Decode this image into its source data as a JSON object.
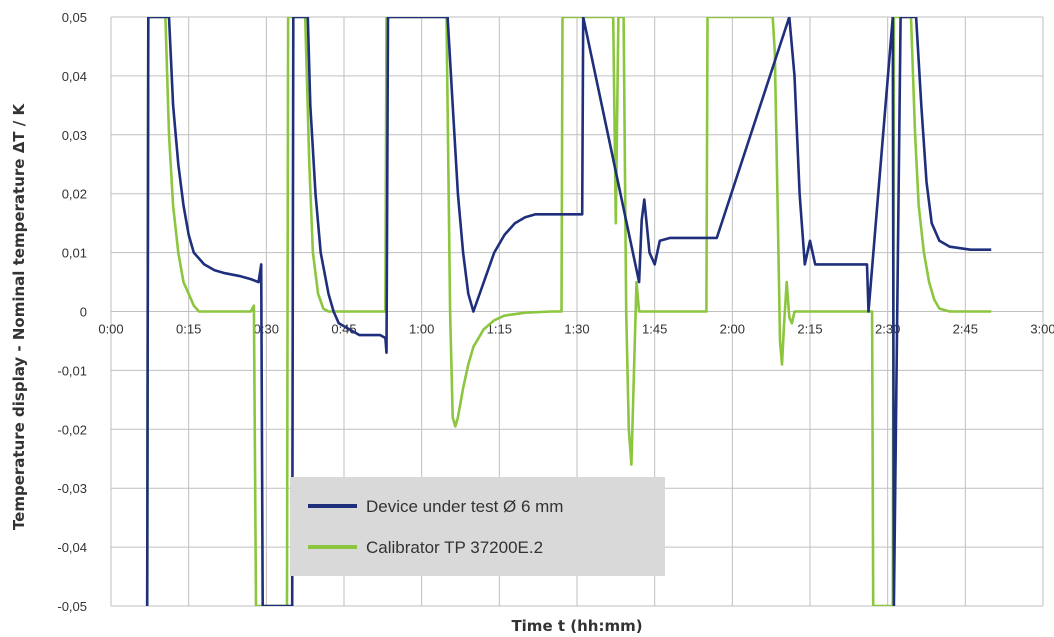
{
  "chart_data": {
    "type": "line",
    "title": "",
    "xlabel": "Time t (hh:mm)",
    "ylabel": "Temperature display - Nominal temperature ΔT / K",
    "x_unit": "minutes",
    "xlim": [
      0,
      180
    ],
    "ylim": [
      -0.05,
      0.05
    ],
    "x_ticks": [
      0,
      15,
      30,
      45,
      60,
      75,
      90,
      105,
      120,
      135,
      150,
      165,
      180
    ],
    "x_tick_labels": [
      "0:00",
      "0:15",
      "0:30",
      "0:45",
      "1:00",
      "1:15",
      "1:30",
      "1:45",
      "2:00",
      "2:15",
      "2:30",
      "2:45",
      "3:00"
    ],
    "y_ticks": [
      0.05,
      0.04,
      0.03,
      0.02,
      0.01,
      0,
      -0.01,
      -0.02,
      -0.03,
      -0.04,
      -0.05
    ],
    "y_tick_labels": [
      "0,05",
      "0,04",
      "0,03",
      "0,02",
      "0,01",
      "0",
      "-0,01",
      "-0,02",
      "-0,03",
      "-0,04",
      "-0,05"
    ],
    "grid": true,
    "legend_position": "bottom-center",
    "series": [
      {
        "name": "Device under test Ø 6 mm",
        "color": "#1f2f7c",
        "points": [
          [
            7,
            -0.05
          ],
          [
            7.2,
            0.05
          ],
          [
            11.2,
            0.05
          ],
          [
            12,
            0.035
          ],
          [
            13,
            0.025
          ],
          [
            14,
            0.018
          ],
          [
            15,
            0.013
          ],
          [
            16,
            0.01
          ],
          [
            17,
            0.009
          ],
          [
            18,
            0.008
          ],
          [
            20,
            0.007
          ],
          [
            22,
            0.0065
          ],
          [
            25,
            0.006
          ],
          [
            27,
            0.0055
          ],
          [
            28.5,
            0.005
          ],
          [
            29,
            0.008
          ],
          [
            29.3,
            -0.05
          ],
          [
            35,
            -0.05
          ],
          [
            35.2,
            0.05
          ],
          [
            38,
            0.05
          ],
          [
            38.5,
            0.035
          ],
          [
            39.5,
            0.02
          ],
          [
            40.5,
            0.01
          ],
          [
            42,
            0.003
          ],
          [
            43,
            0
          ],
          [
            44,
            -0.002
          ],
          [
            46,
            -0.003
          ],
          [
            48,
            -0.004
          ],
          [
            50,
            -0.004
          ],
          [
            52,
            -0.004
          ],
          [
            53,
            -0.0045
          ],
          [
            53.2,
            -0.007
          ],
          [
            53.5,
            0.05
          ],
          [
            65,
            0.05
          ],
          [
            66,
            0.035
          ],
          [
            67,
            0.02
          ],
          [
            68,
            0.01
          ],
          [
            69,
            0.003
          ],
          [
            70,
            0
          ],
          [
            72,
            0.005
          ],
          [
            74,
            0.01
          ],
          [
            76,
            0.013
          ],
          [
            78,
            0.015
          ],
          [
            80,
            0.016
          ],
          [
            82,
            0.0165
          ],
          [
            85,
            0.0165
          ],
          [
            91,
            0.0165
          ],
          [
            91.2,
            0.05
          ],
          [
            102,
            0.005
          ],
          [
            102.5,
            0.0155
          ],
          [
            103,
            0.019
          ],
          [
            104,
            0.01
          ],
          [
            105,
            0.008
          ],
          [
            106,
            0.012
          ],
          [
            108,
            0.0125
          ],
          [
            112,
            0.0125
          ],
          [
            117,
            0.0125
          ],
          [
            131,
            0.05
          ],
          [
            132,
            0.04
          ],
          [
            133,
            0.02
          ],
          [
            134,
            0.008
          ],
          [
            135,
            0.012
          ],
          [
            136,
            0.008
          ],
          [
            138,
            0.008
          ],
          [
            142,
            0.008
          ],
          [
            146,
            0.008
          ],
          [
            146.3,
            0
          ],
          [
            151,
            0.05
          ],
          [
            151.2,
            -0.05
          ],
          [
            152.5,
            0.05
          ],
          [
            155.5,
            0.05
          ],
          [
            156.5,
            0.035
          ],
          [
            157.5,
            0.022
          ],
          [
            158.5,
            0.015
          ],
          [
            160,
            0.012
          ],
          [
            162,
            0.011
          ],
          [
            166,
            0.0105
          ],
          [
            170,
            0.0105
          ]
        ]
      },
      {
        "name": "Calibrator TP 37200E.2",
        "color": "#8cc63f",
        "points": [
          [
            7,
            -0.05
          ],
          [
            7.2,
            0.05
          ],
          [
            10.5,
            0.05
          ],
          [
            11.2,
            0.03
          ],
          [
            12,
            0.018
          ],
          [
            13,
            0.01
          ],
          [
            14,
            0.005
          ],
          [
            15,
            0.003
          ],
          [
            16,
            0.001
          ],
          [
            17,
            0
          ],
          [
            20,
            0
          ],
          [
            23,
            0
          ],
          [
            26,
            0
          ],
          [
            27,
            0
          ],
          [
            27.6,
            0.001
          ],
          [
            28,
            -0.05
          ],
          [
            34,
            -0.05
          ],
          [
            34.2,
            0.05
          ],
          [
            37.5,
            0.05
          ],
          [
            38.3,
            0.025
          ],
          [
            39,
            0.01
          ],
          [
            40,
            0.003
          ],
          [
            41,
            0.0005
          ],
          [
            42,
            0
          ],
          [
            46,
            0
          ],
          [
            50,
            0
          ],
          [
            53,
            0
          ],
          [
            53.2,
            0.05
          ],
          [
            64.8,
            0.05
          ],
          [
            65.5,
            0
          ],
          [
            66,
            -0.018
          ],
          [
            66.5,
            -0.0195
          ],
          [
            67,
            -0.018
          ],
          [
            68,
            -0.013
          ],
          [
            69,
            -0.009
          ],
          [
            70,
            -0.006
          ],
          [
            72,
            -0.003
          ],
          [
            74,
            -0.0015
          ],
          [
            76,
            -0.0007
          ],
          [
            80,
            -0.0002
          ],
          [
            85,
            0
          ],
          [
            87,
            0
          ],
          [
            87.2,
            0.05
          ],
          [
            97,
            0.05
          ],
          [
            97.5,
            0.015
          ],
          [
            98,
            0.05
          ],
          [
            99,
            0.05
          ],
          [
            99.5,
            0
          ],
          [
            100,
            -0.02
          ],
          [
            100.5,
            -0.026
          ],
          [
            101,
            -0.01
          ],
          [
            101.5,
            0.005
          ],
          [
            102,
            0
          ],
          [
            104,
            0
          ],
          [
            107,
            0
          ],
          [
            112,
            0
          ],
          [
            115,
            0
          ],
          [
            115.2,
            0.05
          ],
          [
            127.8,
            0.05
          ],
          [
            128.2,
            0.044
          ],
          [
            128.7,
            0.02
          ],
          [
            129.2,
            -0.005
          ],
          [
            129.6,
            -0.009
          ],
          [
            130,
            -0.002
          ],
          [
            130.5,
            0.005
          ],
          [
            131,
            -0.001
          ],
          [
            131.5,
            -0.002
          ],
          [
            132,
            0
          ],
          [
            134,
            0
          ],
          [
            140,
            0
          ],
          [
            147,
            0
          ],
          [
            147.2,
            -0.05
          ],
          [
            151,
            -0.05
          ],
          [
            151.2,
            0.05
          ],
          [
            154.5,
            0.05
          ],
          [
            155.3,
            0.03
          ],
          [
            156,
            0.018
          ],
          [
            157,
            0.01
          ],
          [
            158,
            0.005
          ],
          [
            159,
            0.002
          ],
          [
            160,
            0.0005
          ],
          [
            162,
            0
          ],
          [
            166,
            0
          ],
          [
            170,
            0
          ]
        ]
      }
    ]
  }
}
